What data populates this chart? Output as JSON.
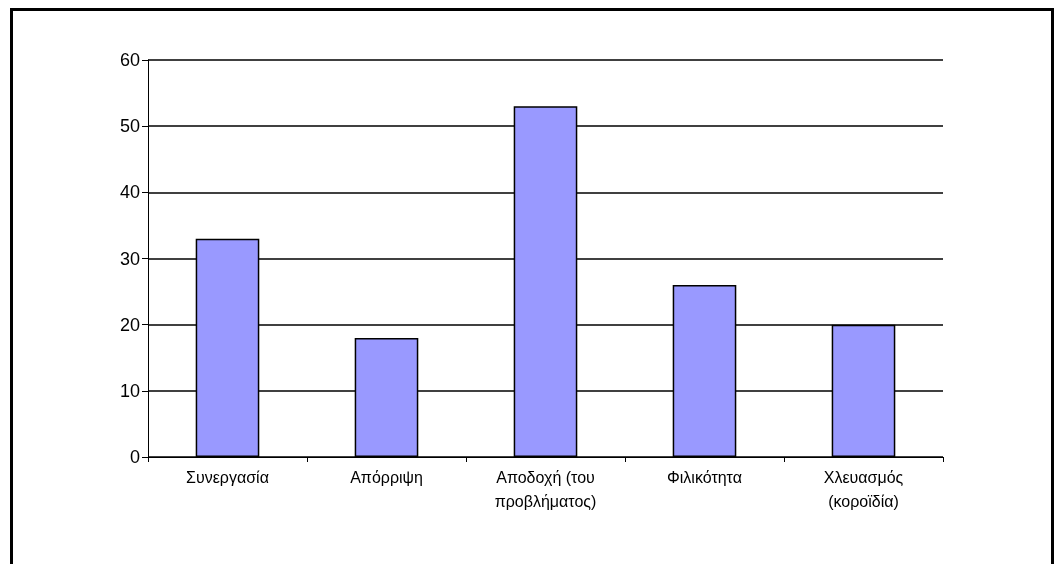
{
  "chart_data": {
    "type": "bar",
    "categories": [
      "Συνεργασία",
      "Απόρριψη",
      "Αποδοχή (του\nπροβλήματος)",
      "Φιλικότητα",
      "Χλευασμός\n(κοροϊδία)"
    ],
    "values": [
      33,
      18,
      53,
      26,
      20
    ],
    "color": "#9999ff",
    "ylim": [
      0,
      60
    ],
    "yticks": [
      0,
      10,
      20,
      30,
      40,
      50,
      60
    ],
    "grid": "y"
  }
}
